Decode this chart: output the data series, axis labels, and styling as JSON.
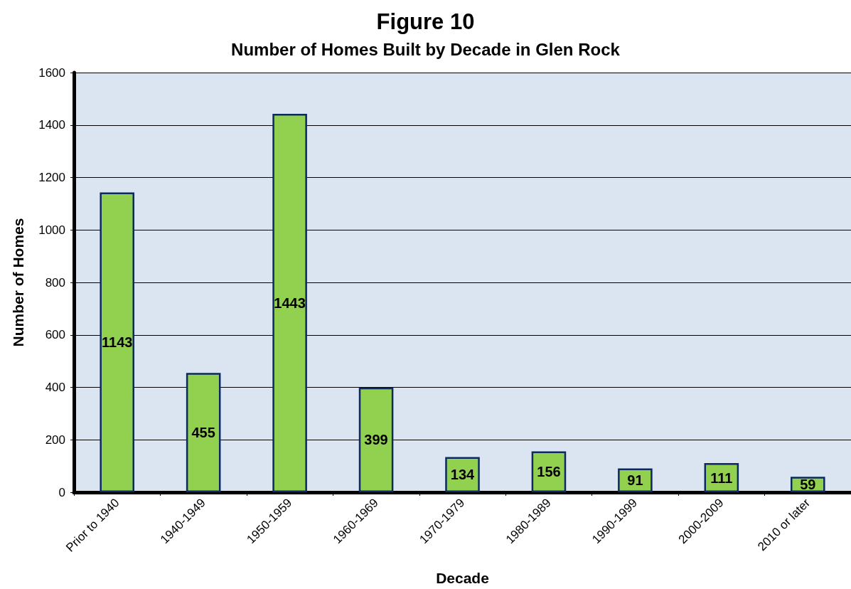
{
  "chart_data": {
    "type": "bar",
    "title": "Figure 10",
    "subtitle": "Number of Homes Built by Decade in Glen Rock",
    "xlabel": "Decade",
    "ylabel": "Number of Homes",
    "categories": [
      "Prior to 1940",
      "1940-1949",
      "1950-1959",
      "1960-1969",
      "1970-1979",
      "1980-1989",
      "1990-1999",
      "2000-2009",
      "2010 or later"
    ],
    "values": [
      1143,
      455,
      1443,
      399,
      134,
      156,
      91,
      111,
      59
    ],
    "color": "#92d050",
    "ylim": [
      0,
      1600
    ],
    "yticks": [
      0,
      200,
      400,
      600,
      800,
      1000,
      1200,
      1400,
      1600
    ],
    "grid": "y",
    "data_labels": true
  }
}
